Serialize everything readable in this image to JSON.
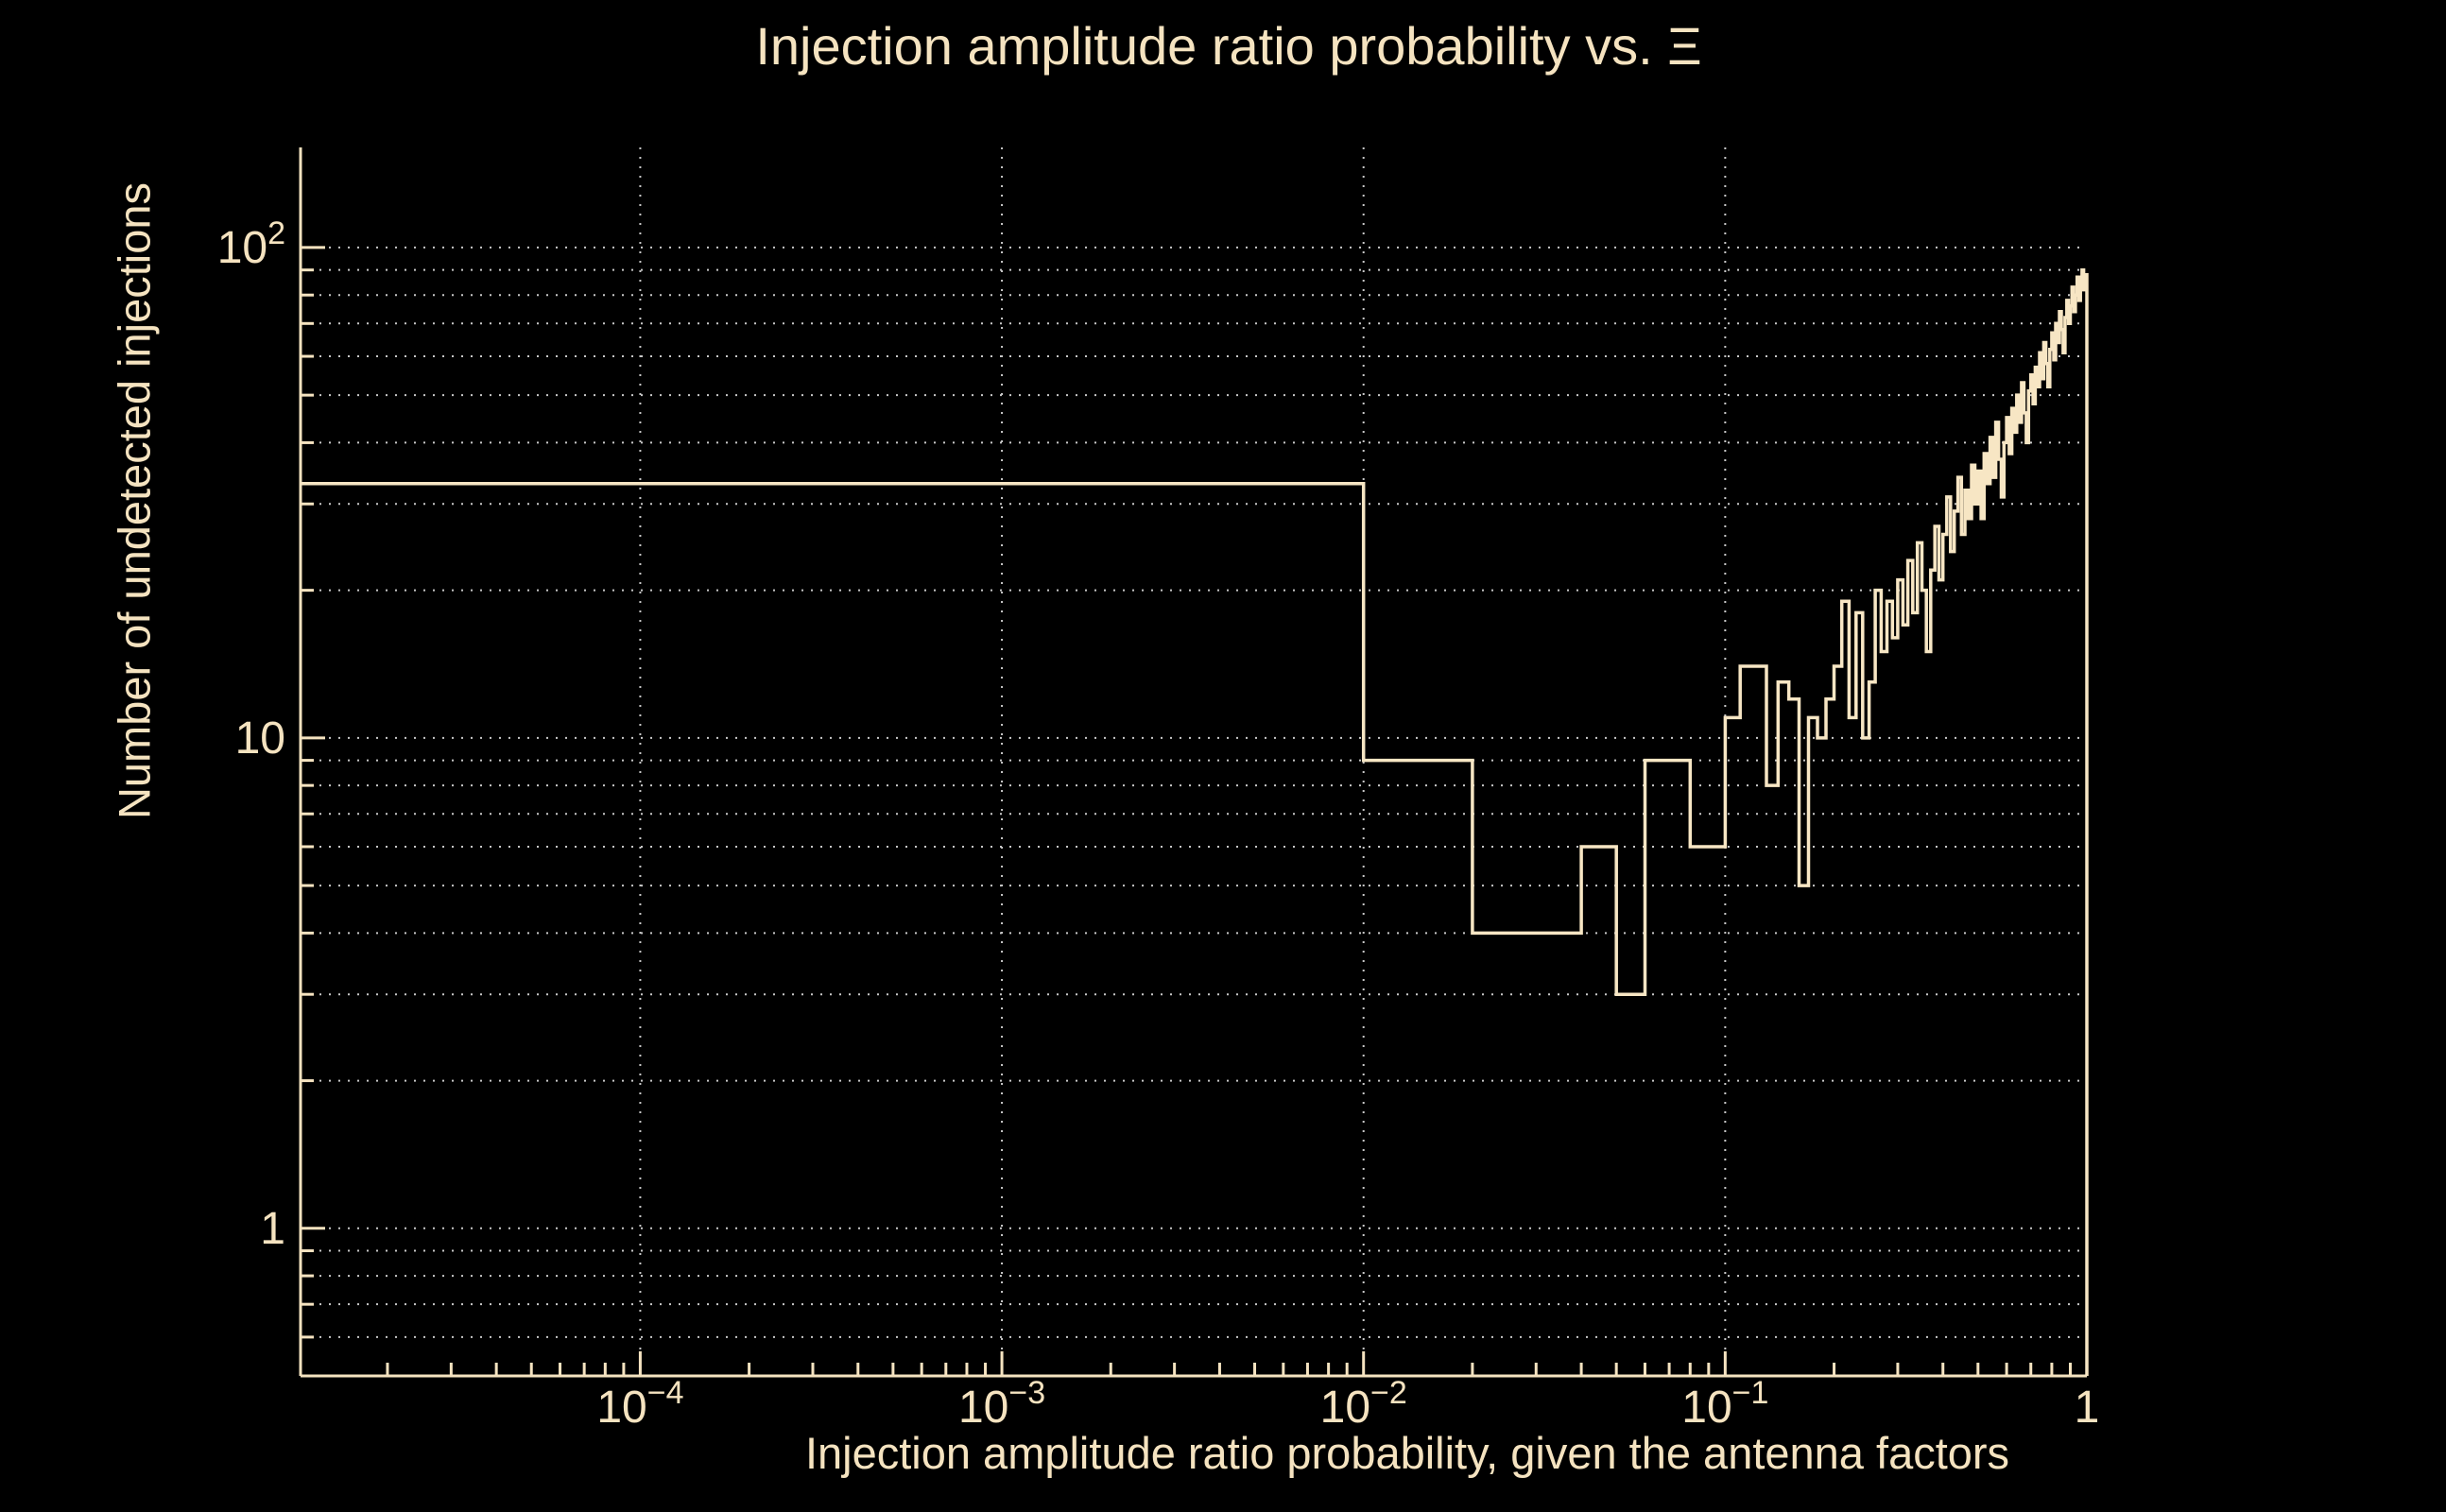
{
  "chart_data": {
    "type": "bar",
    "subtype": "step-histogram-log-log",
    "title": "Injection amplitude ratio probability vs.  Ξ",
    "xlabel": "Injection amplitude ratio probability, given the antenna factors",
    "ylabel": "Number of undetected injections",
    "x_scale": "log",
    "y_scale": "log",
    "x_range": [
      1.15e-05,
      1.0
    ],
    "y_range": [
      0.5,
      160
    ],
    "grid": true,
    "legend": "none",
    "colors": {
      "background": "#000000",
      "foreground": "#f5e3c0",
      "line": "#f7e6c4",
      "grid": "#c8c8c8"
    },
    "x_ticks": [
      {
        "v": 0.0001,
        "base": "10",
        "exp": "−4"
      },
      {
        "v": 0.001,
        "base": "10",
        "exp": "−3"
      },
      {
        "v": 0.01,
        "base": "10",
        "exp": "−2"
      },
      {
        "v": 0.1,
        "base": "10",
        "exp": "−1"
      },
      {
        "v": 1,
        "label": "1"
      }
    ],
    "y_ticks": [
      {
        "v": 1,
        "label": "1"
      },
      {
        "v": 10,
        "label": "10"
      },
      {
        "v": 100,
        "base": "10",
        "exp": "2"
      }
    ],
    "bin_start": 0.0,
    "bin_width": 0.01,
    "first_bin_extends_to_left_edge": true,
    "counts": [
      33,
      9,
      4,
      4,
      6,
      3,
      9,
      9,
      6,
      6,
      11,
      14,
      14,
      8,
      13,
      12,
      5,
      11,
      10,
      12,
      14,
      19,
      11,
      18,
      10,
      13,
      20,
      15,
      19,
      16,
      21,
      17,
      23,
      18,
      25,
      20,
      15,
      22,
      27,
      21,
      26,
      31,
      24,
      29,
      34,
      26,
      32,
      28,
      36,
      30,
      35,
      28,
      38,
      33,
      41,
      34,
      44,
      37,
      31,
      40,
      45,
      38,
      47,
      42,
      50,
      44,
      53,
      46,
      40,
      51,
      55,
      48,
      57,
      52,
      61,
      54,
      64,
      58,
      52,
      62,
      67,
      59,
      70,
      64,
      74,
      68,
      61,
      72,
      78,
      70,
      76,
      83,
      74,
      80,
      87,
      78,
      85,
      90,
      82,
      88
    ]
  }
}
